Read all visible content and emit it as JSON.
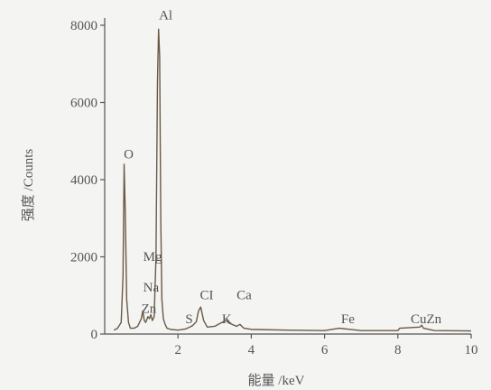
{
  "chart_data": {
    "type": "line",
    "xlabel": "能量 /keV",
    "ylabel": "强度 /Counts",
    "xlim": [
      0,
      10
    ],
    "ylim": [
      0,
      8000
    ],
    "x_ticks": [
      "2",
      "4",
      "6",
      "8",
      "10"
    ],
    "y_ticks": [
      "0",
      "2000",
      "4000",
      "6000",
      "8000"
    ],
    "series": [
      {
        "x": [
          0.25,
          0.35,
          0.45,
          0.5,
          0.53,
          0.56,
          0.6,
          0.65,
          0.7,
          0.8,
          0.9,
          1.0,
          1.04,
          1.08,
          1.12,
          1.18,
          1.22,
          1.26,
          1.3,
          1.35,
          1.4,
          1.44,
          1.47,
          1.5,
          1.53,
          1.56,
          1.6,
          1.65,
          1.7,
          1.8,
          2.0,
          2.2,
          2.3,
          2.4,
          2.5,
          2.56,
          2.62,
          2.7,
          2.8,
          3.0,
          3.2,
          3.31,
          3.4,
          3.6,
          3.69,
          3.8,
          4.0,
          5.0,
          6.0,
          6.4,
          6.6,
          7.0,
          8.0,
          8.05,
          8.6,
          8.65,
          8.7,
          9.0,
          10.0
        ],
        "y": [
          100,
          150,
          300,
          1500,
          4400,
          3200,
          900,
          300,
          150,
          150,
          200,
          400,
          600,
          350,
          300,
          450,
          400,
          500,
          350,
          450,
          2000,
          6500,
          7900,
          7200,
          3000,
          900,
          400,
          250,
          150,
          120,
          100,
          130,
          170,
          220,
          320,
          600,
          700,
          350,
          180,
          200,
          300,
          350,
          280,
          200,
          250,
          150,
          120,
          100,
          90,
          150,
          130,
          90,
          90,
          150,
          180,
          230,
          150,
          90,
          80
        ]
      }
    ],
    "annotations": [
      {
        "text": "Al",
        "x": 1.48,
        "y": 8150
      },
      {
        "text": "O",
        "x": 0.52,
        "y": 4550
      },
      {
        "text": "Mg",
        "x": 1.05,
        "y": 1900
      },
      {
        "text": "Na",
        "x": 1.05,
        "y": 1100
      },
      {
        "text": "Zn",
        "x": 1.0,
        "y": 550
      },
      {
        "text": "CI",
        "x": 2.6,
        "y": 900
      },
      {
        "text": "Ca",
        "x": 3.6,
        "y": 900
      },
      {
        "text": "S",
        "x": 2.2,
        "y": 280
      },
      {
        "text": "K",
        "x": 3.2,
        "y": 280
      },
      {
        "text": "Fe",
        "x": 6.45,
        "y": 280
      },
      {
        "text": "CuZn",
        "x": 8.35,
        "y": 280
      }
    ]
  }
}
